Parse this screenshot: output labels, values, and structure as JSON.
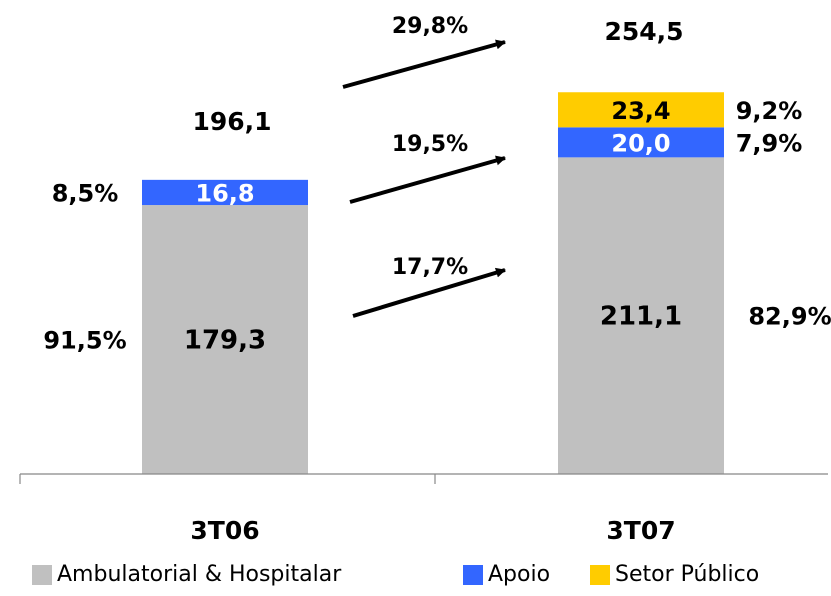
{
  "chart_data": {
    "type": "bar",
    "stacked": true,
    "categories": [
      "3T06",
      "3T07"
    ],
    "series": [
      {
        "name": "Ambulatorial & Hospitalar",
        "values": [
          179.3,
          211.1
        ],
        "labels": [
          "179,3",
          "211,1"
        ],
        "shares": [
          "91,5%",
          "82,9%"
        ],
        "color": "#c0c0c0",
        "label_color": "#000000"
      },
      {
        "name": "Apoio",
        "values": [
          16.8,
          20.0
        ],
        "labels": [
          "16,8",
          "20,0"
        ],
        "shares": [
          "8,5%",
          "7,9%"
        ],
        "color": "#3366ff",
        "label_color": "#ffffff"
      },
      {
        "name": "Setor Público",
        "values": [
          0,
          23.4
        ],
        "labels": [
          "",
          "23,4"
        ],
        "shares": [
          "",
          "9,2%"
        ],
        "color": "#ffcc00",
        "label_color": "#000000"
      }
    ],
    "totals": [
      196.1,
      254.5
    ],
    "total_labels": [
      "196,1",
      "254,5"
    ],
    "growth": [
      {
        "label": "29,8%",
        "series": "total"
      },
      {
        "label": "19,5%",
        "series": "Apoio"
      },
      {
        "label": "17,7%",
        "series": "Ambulatorial & Hospitalar"
      }
    ],
    "legend_position": "bottom",
    "grid": false
  }
}
